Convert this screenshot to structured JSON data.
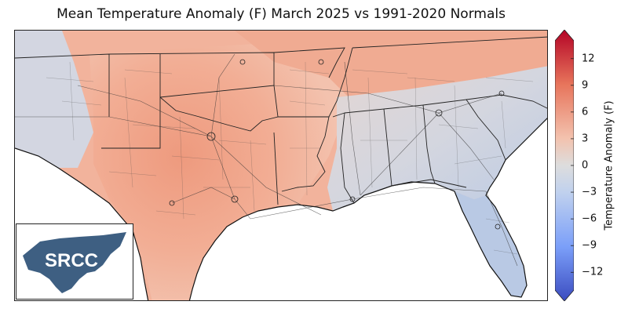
{
  "title": "Mean Temperature Anomaly (F) March 2025 vs 1991-2020 Normals",
  "colorbar": {
    "label": "Temperature Anomaly (F)",
    "min": -14,
    "max": 14,
    "ticks": [
      {
        "value": 12,
        "label": "12"
      },
      {
        "value": 9,
        "label": "9"
      },
      {
        "value": 6,
        "label": "6"
      },
      {
        "value": 3,
        "label": "3"
      },
      {
        "value": 0,
        "label": "0"
      },
      {
        "value": -3,
        "label": "−3"
      },
      {
        "value": -6,
        "label": "−6"
      },
      {
        "value": -9,
        "label": "−9"
      },
      {
        "value": -12,
        "label": "−12"
      }
    ],
    "colors": {
      "low": "#3b4cc0",
      "mid": "#dddddd",
      "high": "#b40426"
    }
  },
  "logo": {
    "text": "SRCC",
    "colors": {
      "shape": "#3e5f82",
      "text": "#ffffff"
    }
  },
  "map_colors": {
    "warm_strong": "#ee9a7e",
    "warm": "#f2b39c",
    "warm_light": "#f3c9b8",
    "neutral": "#dcd8d8",
    "cool_light": "#c8d3e6",
    "cool": "#b5c6e3",
    "water": "#ffffff"
  }
}
